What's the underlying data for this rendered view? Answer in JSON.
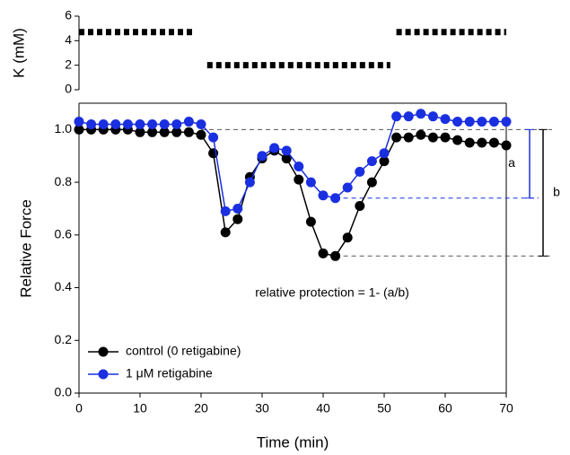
{
  "chart_data": [
    {
      "type": "line",
      "ylabel": "K (mM)",
      "ylim": [
        0,
        6
      ],
      "yticks": [
        0,
        2,
        4,
        6
      ],
      "xlim": [
        0,
        70
      ],
      "x": [
        0,
        19,
        20,
        21,
        51,
        51.5,
        52,
        70
      ],
      "values": [
        4.7,
        4.7,
        null,
        2,
        2,
        null,
        4.7,
        4.7
      ],
      "color": "#000000"
    },
    {
      "type": "line",
      "xlabel": "Time  (min)",
      "ylabel": "Relative Force",
      "xlim": [
        0,
        70
      ],
      "xticks": [
        0,
        10,
        20,
        30,
        40,
        50,
        60,
        70
      ],
      "ylim": [
        0,
        1.1
      ],
      "yticks": [
        {
          "value": 0,
          "label": "0.0"
        },
        0.2,
        0.4,
        0.6,
        0.8,
        {
          "value": 1,
          "label": "1.0"
        }
      ],
      "x": [
        0,
        2,
        4,
        6,
        8,
        10,
        12,
        14,
        16,
        18,
        20,
        22,
        24,
        26,
        28,
        30,
        32,
        34,
        36,
        38,
        40,
        42,
        44,
        46,
        48,
        50,
        52,
        54,
        56,
        58,
        60,
        62,
        64,
        66,
        68,
        70
      ],
      "series": [
        {
          "name": "control (0 retigabine)",
          "color": "#000000",
          "values": [
            1.0,
            1.0,
            1.0,
            1.0,
            1.0,
            0.99,
            0.99,
            0.99,
            0.99,
            0.99,
            0.98,
            0.91,
            0.61,
            0.66,
            0.82,
            0.89,
            0.92,
            0.89,
            0.81,
            0.65,
            0.53,
            0.52,
            0.59,
            0.71,
            0.8,
            0.88,
            0.97,
            0.97,
            0.98,
            0.97,
            0.97,
            0.96,
            0.95,
            0.95,
            0.95,
            0.94
          ]
        },
        {
          "name": "1 μM retigabine",
          "color": "#1a2fe0",
          "values": [
            1.03,
            1.02,
            1.02,
            1.02,
            1.02,
            1.02,
            1.02,
            1.02,
            1.02,
            1.03,
            1.02,
            0.97,
            0.69,
            0.7,
            0.8,
            0.9,
            0.93,
            0.92,
            0.86,
            0.8,
            0.75,
            0.74,
            0.78,
            0.84,
            0.88,
            0.91,
            1.05,
            1.05,
            1.06,
            1.05,
            1.04,
            1.03,
            1.03,
            1.03,
            1.03,
            1.03
          ]
        }
      ],
      "legend": "lower left",
      "reference_lines": [
        {
          "y": 1,
          "x": 20,
          "color": "#555555"
        },
        {
          "y": 0.74,
          "x": 42,
          "color": "#1a2fe0"
        },
        {
          "y": 0.52,
          "x": 42,
          "color": "#555555"
        }
      ],
      "brackets": [
        {
          "label": "a",
          "from": 1,
          "to": 0.74,
          "color": "#1a2fe0"
        },
        {
          "label": "b",
          "from": 1,
          "to": 0.52,
          "color": "#000000"
        }
      ],
      "annotation": "relative protection = 1- (a/b)"
    }
  ]
}
